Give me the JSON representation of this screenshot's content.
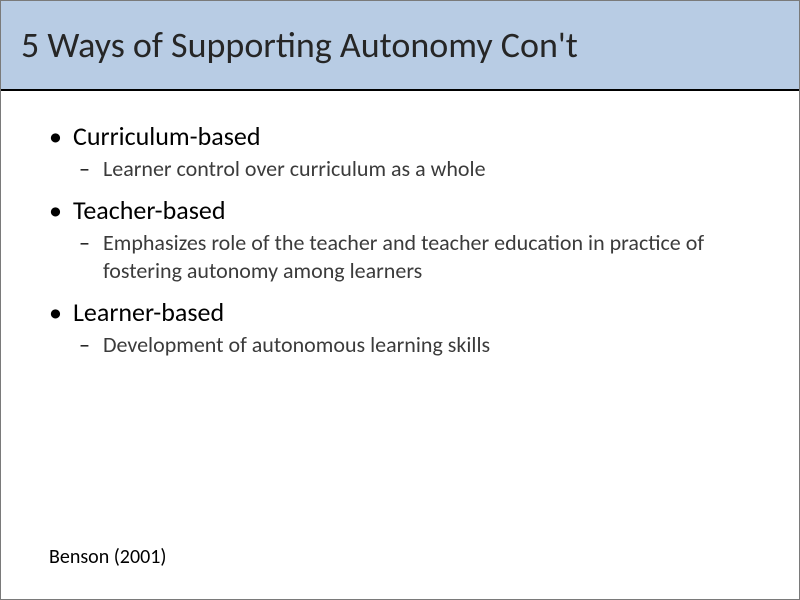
{
  "slide": {
    "title": "5 Ways of Supporting Autonomy Con't",
    "title_band_color": "#b8cce4",
    "title_underline_color": "#000000",
    "background_color": "#ffffff",
    "bullets": [
      {
        "label": "Curriculum-based",
        "sub": [
          "Learner control over curriculum as a whole"
        ]
      },
      {
        "label": "Teacher-based",
        "sub": [
          "Emphasizes role of the teacher and teacher education in practice of fostering autonomy among learners"
        ]
      },
      {
        "label": "Learner-based",
        "sub": [
          "Development of autonomous learning skills"
        ]
      }
    ],
    "citation": "Benson (2001)",
    "typography": {
      "title_fontsize": 36,
      "level1_fontsize": 26,
      "level2_fontsize": 22,
      "citation_fontsize": 20,
      "font_family": "Calibri"
    }
  }
}
